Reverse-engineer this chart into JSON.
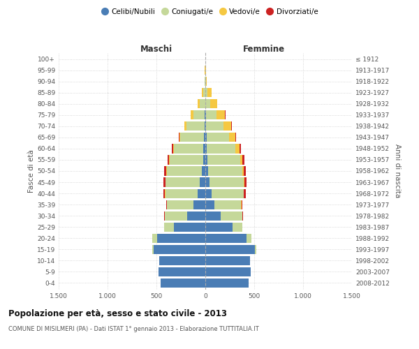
{
  "age_groups": [
    "0-4",
    "5-9",
    "10-14",
    "15-19",
    "20-24",
    "25-29",
    "30-34",
    "35-39",
    "40-44",
    "45-49",
    "50-54",
    "55-59",
    "60-64",
    "65-69",
    "70-74",
    "75-79",
    "80-84",
    "85-89",
    "90-94",
    "95-99",
    "100+"
  ],
  "birth_years": [
    "2008-2012",
    "2003-2007",
    "1998-2002",
    "1993-1997",
    "1988-1992",
    "1983-1987",
    "1978-1982",
    "1973-1977",
    "1968-1972",
    "1963-1967",
    "1958-1962",
    "1953-1957",
    "1948-1952",
    "1943-1947",
    "1938-1942",
    "1933-1937",
    "1928-1932",
    "1923-1927",
    "1918-1922",
    "1913-1917",
    "≤ 1912"
  ],
  "males": {
    "celibi": [
      460,
      480,
      470,
      530,
      490,
      320,
      185,
      120,
      80,
      55,
      35,
      25,
      20,
      15,
      10,
      5,
      3,
      3,
      1,
      1,
      0
    ],
    "coniugati": [
      0,
      0,
      2,
      10,
      50,
      100,
      230,
      270,
      330,
      350,
      360,
      340,
      300,
      240,
      185,
      120,
      55,
      22,
      4,
      2,
      1
    ],
    "vedovi": [
      0,
      0,
      0,
      0,
      0,
      0,
      0,
      1,
      2,
      3,
      5,
      6,
      8,
      12,
      18,
      22,
      18,
      10,
      3,
      1,
      0
    ],
    "divorziati": [
      0,
      0,
      0,
      1,
      2,
      4,
      7,
      10,
      14,
      18,
      18,
      16,
      13,
      8,
      4,
      3,
      1,
      1,
      0,
      0,
      0
    ]
  },
  "females": {
    "nubili": [
      440,
      465,
      455,
      510,
      420,
      280,
      155,
      95,
      65,
      45,
      30,
      20,
      15,
      12,
      8,
      5,
      3,
      3,
      1,
      1,
      0
    ],
    "coniugate": [
      0,
      0,
      1,
      10,
      48,
      95,
      225,
      270,
      325,
      345,
      350,
      335,
      295,
      232,
      175,
      110,
      50,
      20,
      6,
      2,
      1
    ],
    "vedove": [
      0,
      0,
      0,
      0,
      1,
      1,
      2,
      3,
      5,
      8,
      14,
      22,
      40,
      60,
      80,
      88,
      68,
      38,
      10,
      3,
      0
    ],
    "divorziate": [
      0,
      0,
      0,
      1,
      2,
      4,
      7,
      11,
      16,
      20,
      22,
      20,
      16,
      10,
      5,
      3,
      2,
      1,
      0,
      0,
      0
    ]
  },
  "colors": {
    "celibi": "#4a7db5",
    "coniugati": "#c5d89a",
    "vedovi": "#f5c842",
    "divorziati": "#cc2222"
  },
  "xlim": 1500,
  "xtick_labels": [
    "1.500",
    "1.000",
    "500",
    "0",
    "500",
    "1.000",
    "1.500"
  ],
  "xtick_vals": [
    -1500,
    -1000,
    -500,
    0,
    500,
    1000,
    1500
  ],
  "title": "Popolazione per età, sesso e stato civile - 2013",
  "subtitle": "COMUNE DI MISILMERI (PA) - Dati ISTAT 1° gennaio 2013 - Elaborazione TUTTITALIA.IT",
  "ylabel_left": "Fasce di età",
  "ylabel_right": "Anni di nascita",
  "label_maschi": "Maschi",
  "label_femmine": "Femmine",
  "legend_labels": [
    "Celibi/Nubili",
    "Coniugati/e",
    "Vedovi/e",
    "Divorziati/e"
  ]
}
